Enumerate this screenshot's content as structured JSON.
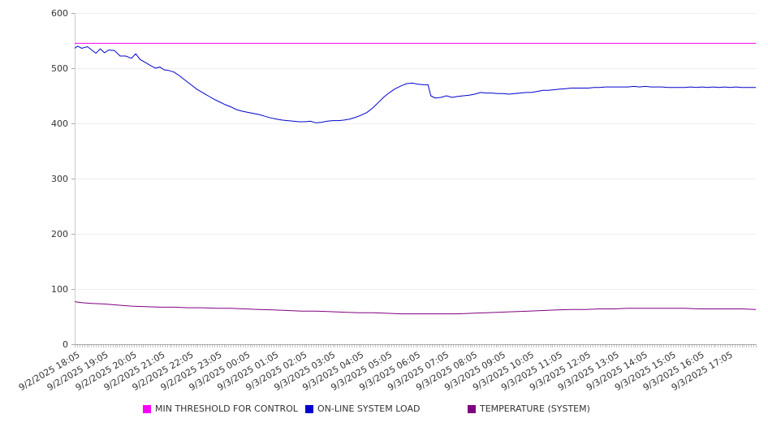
{
  "chart_data": {
    "type": "line",
    "title": "",
    "xlabel": "",
    "ylabel": "",
    "ylim": [
      0,
      600
    ],
    "yticks": [
      0,
      100,
      200,
      300,
      400,
      500,
      600
    ],
    "grid": true,
    "legend_position": "bottom",
    "x_tick_labels": [
      "9/2/2025 18:05",
      "9/2/2025 19:05",
      "9/2/2025 20:05",
      "9/2/2025 21:05",
      "9/2/2025 22:05",
      "9/2/2025 23:05",
      "9/3/2025 00:05",
      "9/3/2025 01:05",
      "9/3/2025 02:05",
      "9/3/2025 03:05",
      "9/3/2025 04:05",
      "9/3/2025 05:05",
      "9/3/2025 06:05",
      "9/3/2025 07:05",
      "9/3/2025 08:05",
      "9/3/2025 09:05",
      "9/3/2025 10:05",
      "9/3/2025 11:05",
      "9/3/2025 12:05",
      "9/3/2025 13:05",
      "9/3/2025 14:05",
      "9/3/2025 15:05",
      "9/3/2025 16:05",
      "9/3/2025 17:05"
    ],
    "x_hours_range": [
      0,
      24
    ],
    "series": [
      {
        "name": "MIN THRESHOLD FOR CONTROL",
        "color": "#ff00ff",
        "points": [
          [
            0,
            545
          ],
          [
            24,
            545
          ]
        ]
      },
      {
        "name": "ON-LINE SYSTEM LOAD",
        "color": "#0000cc",
        "points": [
          [
            0,
            536
          ],
          [
            0.1,
            540
          ],
          [
            0.25,
            536
          ],
          [
            0.45,
            539
          ],
          [
            0.6,
            533
          ],
          [
            0.75,
            527
          ],
          [
            0.9,
            535
          ],
          [
            1.05,
            528
          ],
          [
            1.2,
            533
          ],
          [
            1.4,
            532
          ],
          [
            1.6,
            522
          ],
          [
            1.8,
            522
          ],
          [
            2.0,
            518
          ],
          [
            2.15,
            526
          ],
          [
            2.3,
            516
          ],
          [
            2.5,
            510
          ],
          [
            2.7,
            504
          ],
          [
            2.85,
            500
          ],
          [
            3.0,
            502
          ],
          [
            3.15,
            497
          ],
          [
            3.3,
            496
          ],
          [
            3.5,
            493
          ],
          [
            3.7,
            486
          ],
          [
            3.9,
            478
          ],
          [
            4.1,
            470
          ],
          [
            4.3,
            462
          ],
          [
            4.5,
            456
          ],
          [
            4.7,
            450
          ],
          [
            4.9,
            444
          ],
          [
            5.1,
            439
          ],
          [
            5.3,
            434
          ],
          [
            5.5,
            430
          ],
          [
            5.7,
            425
          ],
          [
            5.9,
            422
          ],
          [
            6.1,
            420
          ],
          [
            6.3,
            418
          ],
          [
            6.5,
            416
          ],
          [
            6.7,
            413
          ],
          [
            6.9,
            410
          ],
          [
            7.1,
            408
          ],
          [
            7.3,
            406
          ],
          [
            7.5,
            405
          ],
          [
            7.7,
            404
          ],
          [
            7.9,
            403
          ],
          [
            8.1,
            403
          ],
          [
            8.3,
            404
          ],
          [
            8.5,
            401
          ],
          [
            8.7,
            402
          ],
          [
            8.9,
            404
          ],
          [
            9.1,
            405
          ],
          [
            9.3,
            405
          ],
          [
            9.5,
            406
          ],
          [
            9.7,
            408
          ],
          [
            9.9,
            411
          ],
          [
            10.1,
            415
          ],
          [
            10.3,
            420
          ],
          [
            10.5,
            428
          ],
          [
            10.7,
            438
          ],
          [
            10.9,
            448
          ],
          [
            11.1,
            456
          ],
          [
            11.3,
            463
          ],
          [
            11.5,
            468
          ],
          [
            11.7,
            472
          ],
          [
            11.9,
            473
          ],
          [
            12.1,
            471
          ],
          [
            12.3,
            470
          ],
          [
            12.45,
            470
          ],
          [
            12.55,
            450
          ],
          [
            12.7,
            446
          ],
          [
            12.9,
            447
          ],
          [
            13.1,
            450
          ],
          [
            13.3,
            447
          ],
          [
            13.5,
            449
          ],
          [
            13.7,
            450
          ],
          [
            13.9,
            451
          ],
          [
            14.1,
            453
          ],
          [
            14.3,
            456
          ],
          [
            14.5,
            455
          ],
          [
            14.7,
            455
          ],
          [
            14.9,
            454
          ],
          [
            15.1,
            454
          ],
          [
            15.3,
            453
          ],
          [
            15.5,
            454
          ],
          [
            15.7,
            455
          ],
          [
            15.9,
            456
          ],
          [
            16.1,
            456
          ],
          [
            16.3,
            458
          ],
          [
            16.5,
            460
          ],
          [
            16.7,
            460
          ],
          [
            16.9,
            461
          ],
          [
            17.1,
            462
          ],
          [
            17.3,
            463
          ],
          [
            17.5,
            464
          ],
          [
            17.7,
            464
          ],
          [
            17.9,
            464
          ],
          [
            18.1,
            464
          ],
          [
            18.3,
            465
          ],
          [
            18.5,
            465
          ],
          [
            18.7,
            466
          ],
          [
            18.9,
            466
          ],
          [
            19.1,
            466
          ],
          [
            19.3,
            466
          ],
          [
            19.5,
            466
          ],
          [
            19.7,
            467
          ],
          [
            19.9,
            466
          ],
          [
            20.1,
            467
          ],
          [
            20.3,
            466
          ],
          [
            20.5,
            466
          ],
          [
            20.7,
            466
          ],
          [
            20.9,
            465
          ],
          [
            21.1,
            465
          ],
          [
            21.3,
            465
          ],
          [
            21.5,
            465
          ],
          [
            21.7,
            466
          ],
          [
            21.9,
            465
          ],
          [
            22.1,
            466
          ],
          [
            22.3,
            465
          ],
          [
            22.5,
            466
          ],
          [
            22.7,
            465
          ],
          [
            22.9,
            466
          ],
          [
            23.1,
            465
          ],
          [
            23.3,
            466
          ],
          [
            23.5,
            465
          ],
          [
            23.7,
            465
          ],
          [
            24,
            465
          ]
        ]
      },
      {
        "name": "TEMPERATURE (SYSTEM)",
        "color": "#800080",
        "points": [
          [
            0,
            77
          ],
          [
            0.3,
            75
          ],
          [
            0.6,
            74
          ],
          [
            1.0,
            73
          ],
          [
            1.5,
            71
          ],
          [
            2.0,
            69
          ],
          [
            2.5,
            68
          ],
          [
            3.0,
            67
          ],
          [
            3.5,
            67
          ],
          [
            4.0,
            66
          ],
          [
            4.5,
            66
          ],
          [
            5.0,
            65
          ],
          [
            5.5,
            65
          ],
          [
            6.0,
            64
          ],
          [
            6.5,
            63
          ],
          [
            7.0,
            62
          ],
          [
            7.5,
            61
          ],
          [
            8.0,
            60
          ],
          [
            8.5,
            60
          ],
          [
            9.0,
            59
          ],
          [
            9.5,
            58
          ],
          [
            10.0,
            57
          ],
          [
            10.5,
            57
          ],
          [
            11.0,
            56
          ],
          [
            11.5,
            55
          ],
          [
            12.0,
            55
          ],
          [
            12.5,
            55
          ],
          [
            13.0,
            55
          ],
          [
            13.5,
            55
          ],
          [
            14.0,
            56
          ],
          [
            14.5,
            57
          ],
          [
            15.0,
            58
          ],
          [
            15.5,
            59
          ],
          [
            16.0,
            60
          ],
          [
            16.5,
            61
          ],
          [
            17.0,
            62
          ],
          [
            17.5,
            63
          ],
          [
            18.0,
            63
          ],
          [
            18.5,
            64
          ],
          [
            19.0,
            64
          ],
          [
            19.5,
            65
          ],
          [
            20.0,
            65
          ],
          [
            20.5,
            65
          ],
          [
            21.0,
            65
          ],
          [
            21.5,
            65
          ],
          [
            22.0,
            64
          ],
          [
            22.5,
            64
          ],
          [
            23.0,
            64
          ],
          [
            23.5,
            64
          ],
          [
            24,
            63
          ]
        ]
      }
    ]
  }
}
